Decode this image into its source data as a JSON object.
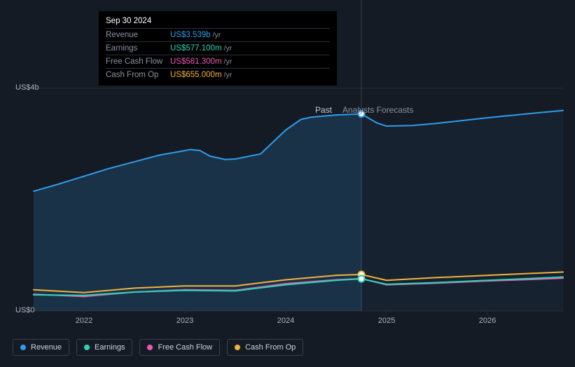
{
  "tooltip": {
    "date": "Sep 30 2024",
    "rows": [
      {
        "label": "Revenue",
        "value": "US$3.539b",
        "suffix": "/yr",
        "color": "#2f9ceb"
      },
      {
        "label": "Earnings",
        "value": "US$577.100m",
        "suffix": "/yr",
        "color": "#2bd4b5"
      },
      {
        "label": "Free Cash Flow",
        "value": "US$581.300m",
        "suffix": "/yr",
        "color": "#e85bb4"
      },
      {
        "label": "Cash From Op",
        "value": "US$655.000m",
        "suffix": "/yr",
        "color": "#f2b23c"
      }
    ]
  },
  "chart": {
    "type": "line",
    "background_color": "#151b24",
    "grid_color": "#252c37",
    "vertical_line_color": "#3a4352",
    "y_axis": {
      "min": 0,
      "max": 4000,
      "labels": [
        {
          "value": 0,
          "text": "US$0"
        },
        {
          "value": 4000,
          "text": "US$4b"
        }
      ],
      "label_color": "#a9b3c1",
      "label_fontsize": 11
    },
    "x_axis": {
      "min": 2021.5,
      "max": 2026.75,
      "ticks": [
        2022,
        2023,
        2024,
        2025,
        2026
      ],
      "label_color": "#a9b3c1",
      "label_fontsize": 11
    },
    "divider_x": 2024.75,
    "section_labels": {
      "past": "Past",
      "forecast": "Analysts Forecasts"
    },
    "series": [
      {
        "name": "Revenue",
        "color": "#2f9ceb",
        "fill": "#2f9ceb",
        "fill_opacity_past": 0.18,
        "fill_opacity_future": 0.06,
        "line_width": 2,
        "data": [
          [
            2021.5,
            2150
          ],
          [
            2021.75,
            2280
          ],
          [
            2022,
            2420
          ],
          [
            2022.25,
            2560
          ],
          [
            2022.5,
            2680
          ],
          [
            2022.75,
            2800
          ],
          [
            2023,
            2880
          ],
          [
            2023.05,
            2900
          ],
          [
            2023.15,
            2880
          ],
          [
            2023.25,
            2780
          ],
          [
            2023.4,
            2720
          ],
          [
            2023.5,
            2730
          ],
          [
            2023.75,
            2820
          ],
          [
            2024,
            3250
          ],
          [
            2024.15,
            3440
          ],
          [
            2024.25,
            3480
          ],
          [
            2024.5,
            3520
          ],
          [
            2024.75,
            3539
          ],
          [
            2024.9,
            3380
          ],
          [
            2025,
            3320
          ],
          [
            2025.25,
            3330
          ],
          [
            2025.5,
            3370
          ],
          [
            2026,
            3470
          ],
          [
            2026.5,
            3560
          ],
          [
            2026.75,
            3600
          ]
        ]
      },
      {
        "name": "Cash From Op",
        "color": "#f2b23c",
        "line_width": 2,
        "data": [
          [
            2021.5,
            380
          ],
          [
            2022,
            330
          ],
          [
            2022.5,
            410
          ],
          [
            2023,
            450
          ],
          [
            2023.5,
            450
          ],
          [
            2024,
            560
          ],
          [
            2024.5,
            640
          ],
          [
            2024.75,
            655
          ],
          [
            2025,
            550
          ],
          [
            2025.5,
            600
          ],
          [
            2026,
            640
          ],
          [
            2026.5,
            680
          ],
          [
            2026.75,
            700
          ]
        ]
      },
      {
        "name": "Free Cash Flow",
        "color": "#e85bb4",
        "line_width": 2,
        "data": [
          [
            2021.5,
            300
          ],
          [
            2022,
            260
          ],
          [
            2022.5,
            340
          ],
          [
            2023,
            380
          ],
          [
            2023.5,
            370
          ],
          [
            2024,
            490
          ],
          [
            2024.5,
            560
          ],
          [
            2024.75,
            581
          ],
          [
            2025,
            470
          ],
          [
            2025.5,
            500
          ],
          [
            2026,
            540
          ],
          [
            2026.5,
            570
          ],
          [
            2026.75,
            590
          ]
        ]
      },
      {
        "name": "Earnings",
        "color": "#2bd4b5",
        "line_width": 2,
        "data": [
          [
            2021.5,
            290
          ],
          [
            2022,
            280
          ],
          [
            2022.5,
            340
          ],
          [
            2023,
            370
          ],
          [
            2023.5,
            360
          ],
          [
            2024,
            470
          ],
          [
            2024.5,
            550
          ],
          [
            2024.75,
            577
          ],
          [
            2025,
            480
          ],
          [
            2025.5,
            510
          ],
          [
            2026,
            550
          ],
          [
            2026.5,
            590
          ],
          [
            2026.75,
            610
          ]
        ]
      }
    ],
    "markers": [
      {
        "x": 2024.75,
        "y": 3539,
        "stroke": "#2f9ceb",
        "fill": "#ffffff"
      },
      {
        "x": 2024.75,
        "y": 655,
        "stroke": "#f2b23c",
        "fill": "#ffffff"
      },
      {
        "x": 2024.75,
        "y": 581,
        "stroke": "#e85bb4",
        "fill": "#ffffff"
      },
      {
        "x": 2024.75,
        "y": 577,
        "stroke": "#2bd4b5",
        "fill": "#ffffff"
      }
    ],
    "legend": [
      {
        "label": "Revenue",
        "color": "#2f9ceb"
      },
      {
        "label": "Earnings",
        "color": "#2bd4b5"
      },
      {
        "label": "Free Cash Flow",
        "color": "#e85bb4"
      },
      {
        "label": "Cash From Op",
        "color": "#f2b23c"
      }
    ]
  }
}
